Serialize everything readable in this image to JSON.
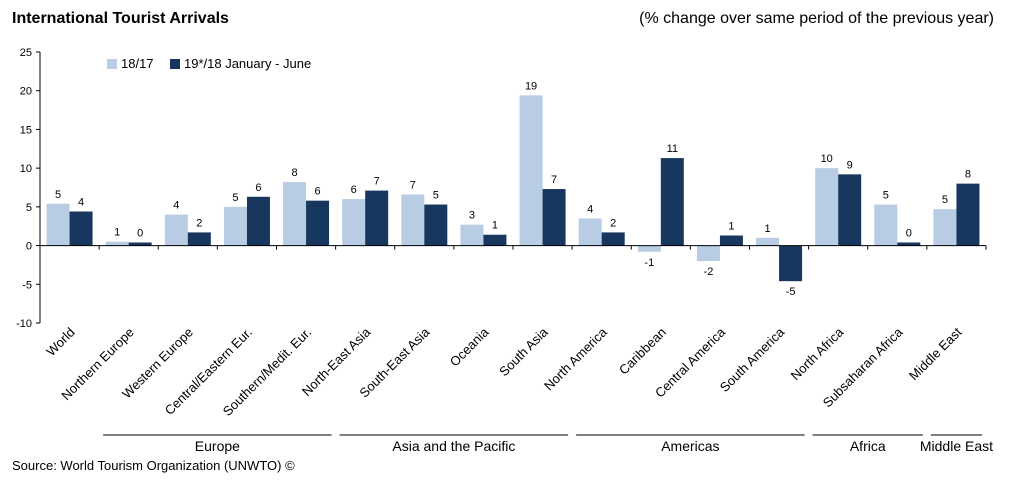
{
  "chart_data": {
    "type": "bar",
    "title": "International Tourist Arrivals",
    "subtitle": "(% change over same period of the previous year)",
    "source": "Source: World Tourism Organization (UNWTO) ©",
    "categories": [
      "World",
      "Northern Europe",
      "Western Europe",
      "Central/Eastern Eur.",
      "Southern/Medit. Eur.",
      "North-East Asia",
      "South-East Asia",
      "Oceania",
      "South Asia",
      "North America",
      "Caribbean",
      "Central America",
      "South America",
      "North Africa",
      "Subsaharan Africa",
      "Middle East"
    ],
    "series": [
      {
        "name": "18/17",
        "color": "#b8cce4",
        "values": [
          5.4,
          0.5,
          4.0,
          5.0,
          8.2,
          6.0,
          6.6,
          2.7,
          19.4,
          3.5,
          -0.8,
          -2.0,
          1.0,
          10.0,
          5.3,
          4.7
        ],
        "labels": [
          "5",
          "1",
          "4",
          "5",
          "8",
          "6",
          "7",
          "3",
          "19",
          "4",
          "-1",
          "-2",
          "1",
          "10",
          "5",
          "5"
        ]
      },
      {
        "name": "19*/18 January - June",
        "color": "#17375e",
        "values": [
          4.4,
          0.4,
          1.7,
          6.3,
          5.8,
          7.1,
          5.3,
          1.4,
          7.3,
          1.7,
          11.3,
          1.3,
          -4.6,
          9.2,
          0.4,
          8.0
        ],
        "labels": [
          "4",
          "0",
          "2",
          "6",
          "6",
          "7",
          "5",
          "1",
          "7",
          "2",
          "11",
          "1",
          "-5",
          "9",
          "0",
          "8"
        ]
      }
    ],
    "groups": [
      {
        "label": "Europe",
        "from": 1,
        "to": 4
      },
      {
        "label": "Asia and the Pacific",
        "from": 5,
        "to": 8
      },
      {
        "label": "Americas",
        "from": 9,
        "to": 12
      },
      {
        "label": "Africa",
        "from": 13,
        "to": 14
      },
      {
        "label": "Middle East",
        "from": 15,
        "to": 15
      }
    ],
    "ylim": [
      -10,
      25
    ],
    "yticks": [
      -10,
      -5,
      0,
      5,
      10,
      15,
      20,
      25
    ],
    "legend_position": "top-left",
    "grid": false
  }
}
